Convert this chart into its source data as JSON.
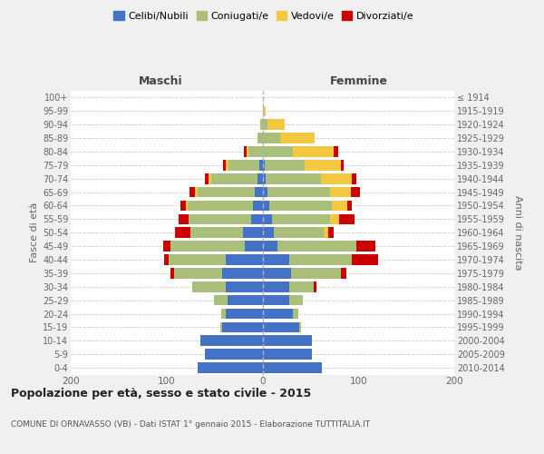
{
  "age_groups": [
    "0-4",
    "5-9",
    "10-14",
    "15-19",
    "20-24",
    "25-29",
    "30-34",
    "35-39",
    "40-44",
    "45-49",
    "50-54",
    "55-59",
    "60-64",
    "65-69",
    "70-74",
    "75-79",
    "80-84",
    "85-89",
    "90-94",
    "95-99",
    "100+"
  ],
  "birth_years": [
    "2010-2014",
    "2005-2009",
    "2000-2004",
    "1995-1999",
    "1990-1994",
    "1985-1989",
    "1980-1984",
    "1975-1979",
    "1970-1974",
    "1965-1969",
    "1960-1964",
    "1955-1959",
    "1950-1954",
    "1945-1949",
    "1940-1944",
    "1935-1939",
    "1930-1934",
    "1925-1929",
    "1920-1924",
    "1915-1919",
    "≤ 1914"
  ],
  "maschi": {
    "celibi": [
      68,
      60,
      65,
      42,
      38,
      36,
      38,
      42,
      38,
      18,
      20,
      12,
      10,
      8,
      5,
      3,
      0,
      0,
      0,
      0,
      0
    ],
    "coniugati": [
      0,
      0,
      0,
      2,
      5,
      15,
      35,
      50,
      60,
      78,
      55,
      65,
      68,
      60,
      48,
      32,
      15,
      5,
      2,
      0,
      0
    ],
    "vedovi": [
      0,
      0,
      0,
      0,
      0,
      0,
      0,
      0,
      0,
      0,
      0,
      0,
      2,
      2,
      3,
      3,
      2,
      0,
      0,
      0,
      0
    ],
    "divorziati": [
      0,
      0,
      0,
      0,
      0,
      0,
      0,
      4,
      5,
      8,
      16,
      10,
      6,
      6,
      4,
      3,
      2,
      0,
      0,
      0,
      0
    ]
  },
  "femmine": {
    "nubili": [
      62,
      52,
      52,
      38,
      32,
      28,
      28,
      30,
      28,
      16,
      12,
      10,
      7,
      5,
      3,
      2,
      0,
      0,
      0,
      0,
      0
    ],
    "coniugate": [
      0,
      0,
      0,
      2,
      5,
      14,
      25,
      52,
      65,
      82,
      52,
      60,
      65,
      65,
      58,
      42,
      32,
      18,
      5,
      1,
      0
    ],
    "vedove": [
      0,
      0,
      0,
      0,
      0,
      0,
      0,
      0,
      0,
      0,
      5,
      10,
      16,
      22,
      32,
      38,
      42,
      36,
      18,
      2,
      0
    ],
    "divorziate": [
      0,
      0,
      0,
      0,
      0,
      0,
      3,
      5,
      28,
      20,
      5,
      16,
      5,
      10,
      5,
      3,
      5,
      0,
      0,
      0,
      0
    ]
  },
  "colors": {
    "celibi": "#4472C4",
    "coniugati": "#AABF7A",
    "vedovi": "#F5C842",
    "divorziati": "#CC0000"
  },
  "xlim": 200,
  "title": "Popolazione per età, sesso e stato civile - 2015",
  "subtitle": "COMUNE DI ORNAVASSO (VB) - Dati ISTAT 1° gennaio 2015 - Elaborazione TUTTITALIA.IT",
  "ylabel_left": "Fasce di età",
  "ylabel_right": "Anni di nascita",
  "xlabel_left": "Maschi",
  "xlabel_right": "Femmine",
  "bg_color": "#f0f0f0",
  "plot_bg": "#ffffff"
}
